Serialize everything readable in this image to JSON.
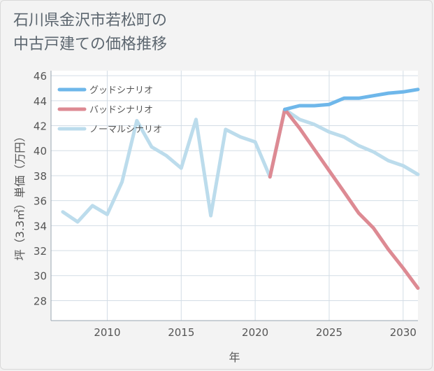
{
  "chart_data": {
    "type": "line",
    "title_line1": "石川県金沢市若松町の",
    "title_line2": "中古戸建ての価格推移",
    "xlabel": "年",
    "ylabel": "坪（3.3㎡）単価（万円）",
    "xlim": [
      2006.2,
      2031
    ],
    "ylim": [
      26.4,
      46.4
    ],
    "x_ticks": [
      2010,
      2015,
      2020,
      2025,
      2030
    ],
    "y_ticks": [
      28,
      30,
      32,
      34,
      36,
      38,
      40,
      42,
      44,
      46
    ],
    "series": [
      {
        "name": "ノーマルシナリオ",
        "color": "#bcdcec",
        "x": [
          2007,
          2008,
          2009,
          2010,
          2011,
          2012,
          2013,
          2014,
          2015,
          2016,
          2017,
          2018,
          2019,
          2020,
          2021,
          2022,
          2023,
          2024,
          2025,
          2026,
          2027,
          2028,
          2029,
          2030,
          2031
        ],
        "values": [
          35.1,
          34.3,
          35.6,
          34.9,
          37.5,
          42.4,
          40.3,
          39.6,
          38.6,
          42.5,
          34.8,
          41.7,
          41.1,
          40.7,
          37.9,
          43.3,
          42.5,
          42.1,
          41.5,
          41.1,
          40.4,
          39.9,
          39.2,
          38.8,
          38.1
        ]
      },
      {
        "name": "バッドシナリオ",
        "color": "#dd8a93",
        "x": [
          2021,
          2022,
          2023,
          2024,
          2025,
          2026,
          2027,
          2028,
          2029,
          2030,
          2031
        ],
        "values": [
          37.9,
          43.3,
          41.8,
          40.1,
          38.4,
          36.7,
          35.0,
          33.8,
          32.1,
          30.6,
          29.0
        ]
      },
      {
        "name": "グッドシナリオ",
        "color": "#6eb7ea",
        "x": [
          2022,
          2023,
          2024,
          2025,
          2026,
          2027,
          2028,
          2029,
          2030,
          2031
        ],
        "values": [
          43.3,
          43.6,
          43.6,
          43.7,
          44.2,
          44.2,
          44.4,
          44.6,
          44.7,
          44.9
        ]
      }
    ],
    "legend": [
      {
        "name": "グッドシナリオ",
        "color": "#6eb7ea"
      },
      {
        "name": "バッドシナリオ",
        "color": "#dd8a93"
      },
      {
        "name": "ノーマルシナリオ",
        "color": "#bcdcec"
      }
    ]
  }
}
